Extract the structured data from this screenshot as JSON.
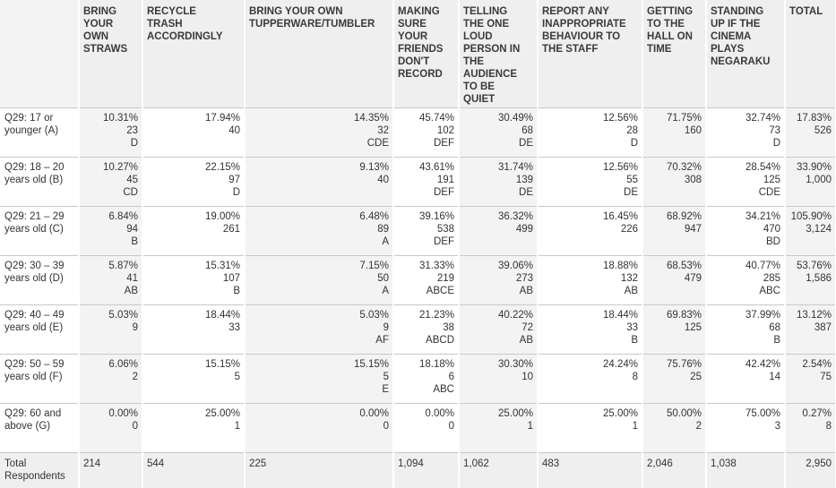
{
  "headers": [
    "",
    "BRING YOUR OWN STRAWS",
    "RECYCLE TRASH ACCORDINGLY",
    "BRING YOUR OWN TUPPERWARE/TUMBLER",
    "MAKING SURE YOUR FRIENDS DON'T RECORD",
    "TELLING THE ONE LOUD PERSON IN THE AUDIENCE TO BE QUIET",
    "REPORT ANY INAPPROPRIATE BEHAVIOUR TO THE STAFF",
    "GETTING TO THE HALL ON TIME",
    "STANDING UP IF THE CINEMA PLAYS NEGARAKU",
    "TOTAL"
  ],
  "header_lines": [
    [],
    [
      "BRING",
      "YOUR",
      "OWN",
      "STRAWS"
    ],
    [
      "RECYCLE",
      "TRASH",
      "ACCORDINGLY"
    ],
    [
      "BRING YOUR OWN",
      "TUPPERWARE/TUMBLER"
    ],
    [
      "MAKING",
      "SURE",
      "YOUR",
      "FRIENDS",
      "DON'T",
      "RECORD"
    ],
    [
      "TELLING",
      "THE ONE",
      "LOUD",
      "PERSON IN",
      "THE",
      "AUDIENCE",
      "TO BE",
      "QUIET"
    ],
    [
      "REPORT ANY",
      "INAPPROPRIATE",
      "BEHAVIOUR TO",
      "THE STAFF"
    ],
    [
      "GETTING",
      "TO THE",
      "HALL ON",
      "TIME"
    ],
    [
      "STANDING",
      "UP IF THE",
      "CINEMA",
      "PLAYS",
      "NEGARAKU"
    ],
    [
      "TOTAL"
    ]
  ],
  "rows": [
    {
      "label": [
        "Q29: 17 or",
        "younger (A)"
      ],
      "cells": [
        [
          "10.31%",
          "23",
          "D"
        ],
        [
          "17.94%",
          "40",
          ""
        ],
        [
          "14.35%",
          "32",
          "CDE"
        ],
        [
          "45.74%",
          "102",
          "DEF"
        ],
        [
          "30.49%",
          "68",
          "DE"
        ],
        [
          "12.56%",
          "28",
          "D"
        ],
        [
          "71.75%",
          "160",
          ""
        ],
        [
          "32.74%",
          "73",
          "D"
        ],
        [
          "17.83%",
          "526",
          ""
        ]
      ]
    },
    {
      "label": [
        "Q29: 18 – 20",
        "years old (B)"
      ],
      "cells": [
        [
          "10.27%",
          "45",
          "CD"
        ],
        [
          "22.15%",
          "97",
          "D"
        ],
        [
          "9.13%",
          "40",
          ""
        ],
        [
          "43.61%",
          "191",
          "DEF"
        ],
        [
          "31.74%",
          "139",
          "DE"
        ],
        [
          "12.56%",
          "55",
          "DE"
        ],
        [
          "70.32%",
          "308",
          ""
        ],
        [
          "28.54%",
          "125",
          "CDE"
        ],
        [
          "33.90%",
          "1,000",
          ""
        ]
      ]
    },
    {
      "label": [
        "Q29: 21 – 29",
        "years old (C)"
      ],
      "cells": [
        [
          "6.84%",
          "94",
          "B"
        ],
        [
          "19.00%",
          "261",
          ""
        ],
        [
          "6.48%",
          "89",
          "A"
        ],
        [
          "39.16%",
          "538",
          "DEF"
        ],
        [
          "36.32%",
          "499",
          ""
        ],
        [
          "16.45%",
          "226",
          ""
        ],
        [
          "68.92%",
          "947",
          ""
        ],
        [
          "34.21%",
          "470",
          "BD"
        ],
        [
          "105.90%",
          "3,124",
          ""
        ]
      ]
    },
    {
      "label": [
        "Q29: 30 – 39",
        "years old (D)"
      ],
      "cells": [
        [
          "5.87%",
          "41",
          "AB"
        ],
        [
          "15.31%",
          "107",
          "B"
        ],
        [
          "7.15%",
          "50",
          "A"
        ],
        [
          "31.33%",
          "219",
          "ABCE"
        ],
        [
          "39.06%",
          "273",
          "AB"
        ],
        [
          "18.88%",
          "132",
          "AB"
        ],
        [
          "68.53%",
          "479",
          ""
        ],
        [
          "40.77%",
          "285",
          "ABC"
        ],
        [
          "53.76%",
          "1,586",
          ""
        ]
      ]
    },
    {
      "label": [
        "Q29: 40 – 49",
        "years old (E)"
      ],
      "cells": [
        [
          "5.03%",
          "9",
          ""
        ],
        [
          "18.44%",
          "33",
          ""
        ],
        [
          "5.03%",
          "9",
          "AF"
        ],
        [
          "21.23%",
          "38",
          "ABCD"
        ],
        [
          "40.22%",
          "72",
          "AB"
        ],
        [
          "18.44%",
          "33",
          "B"
        ],
        [
          "69.83%",
          "125",
          ""
        ],
        [
          "37.99%",
          "68",
          "B"
        ],
        [
          "13.12%",
          "387",
          ""
        ]
      ]
    },
    {
      "label": [
        "Q29: 50 – 59",
        "years old (F)"
      ],
      "cells": [
        [
          "6.06%",
          "2",
          ""
        ],
        [
          "15.15%",
          "5",
          ""
        ],
        [
          "15.15%",
          "5",
          "E"
        ],
        [
          "18.18%",
          "6",
          "ABC"
        ],
        [
          "30.30%",
          "10",
          ""
        ],
        [
          "24.24%",
          "8",
          ""
        ],
        [
          "75.76%",
          "25",
          ""
        ],
        [
          "42.42%",
          "14",
          ""
        ],
        [
          "2.54%",
          "75",
          ""
        ]
      ]
    },
    {
      "label": [
        "Q29: 60 and",
        "above (G)"
      ],
      "cells": [
        [
          "0.00%",
          "0",
          ""
        ],
        [
          "25.00%",
          "1",
          ""
        ],
        [
          "0.00%",
          "0",
          ""
        ],
        [
          "0.00%",
          "0",
          ""
        ],
        [
          "25.00%",
          "1",
          ""
        ],
        [
          "25.00%",
          "1",
          ""
        ],
        [
          "50.00%",
          "2",
          ""
        ],
        [
          "75.00%",
          "3",
          ""
        ],
        [
          "0.27%",
          "8",
          ""
        ]
      ]
    }
  ],
  "total_row": {
    "label": [
      "Total",
      "Respondents"
    ],
    "values": [
      "214",
      "544",
      "225",
      "1,094",
      "1,062",
      "483",
      "2,046",
      "1,038",
      "2,950"
    ]
  },
  "colors": {
    "header_bg": "#efefef",
    "shaded_bg": "#f3f3f3",
    "text": "#333333",
    "rule": "#c8c8c8"
  }
}
